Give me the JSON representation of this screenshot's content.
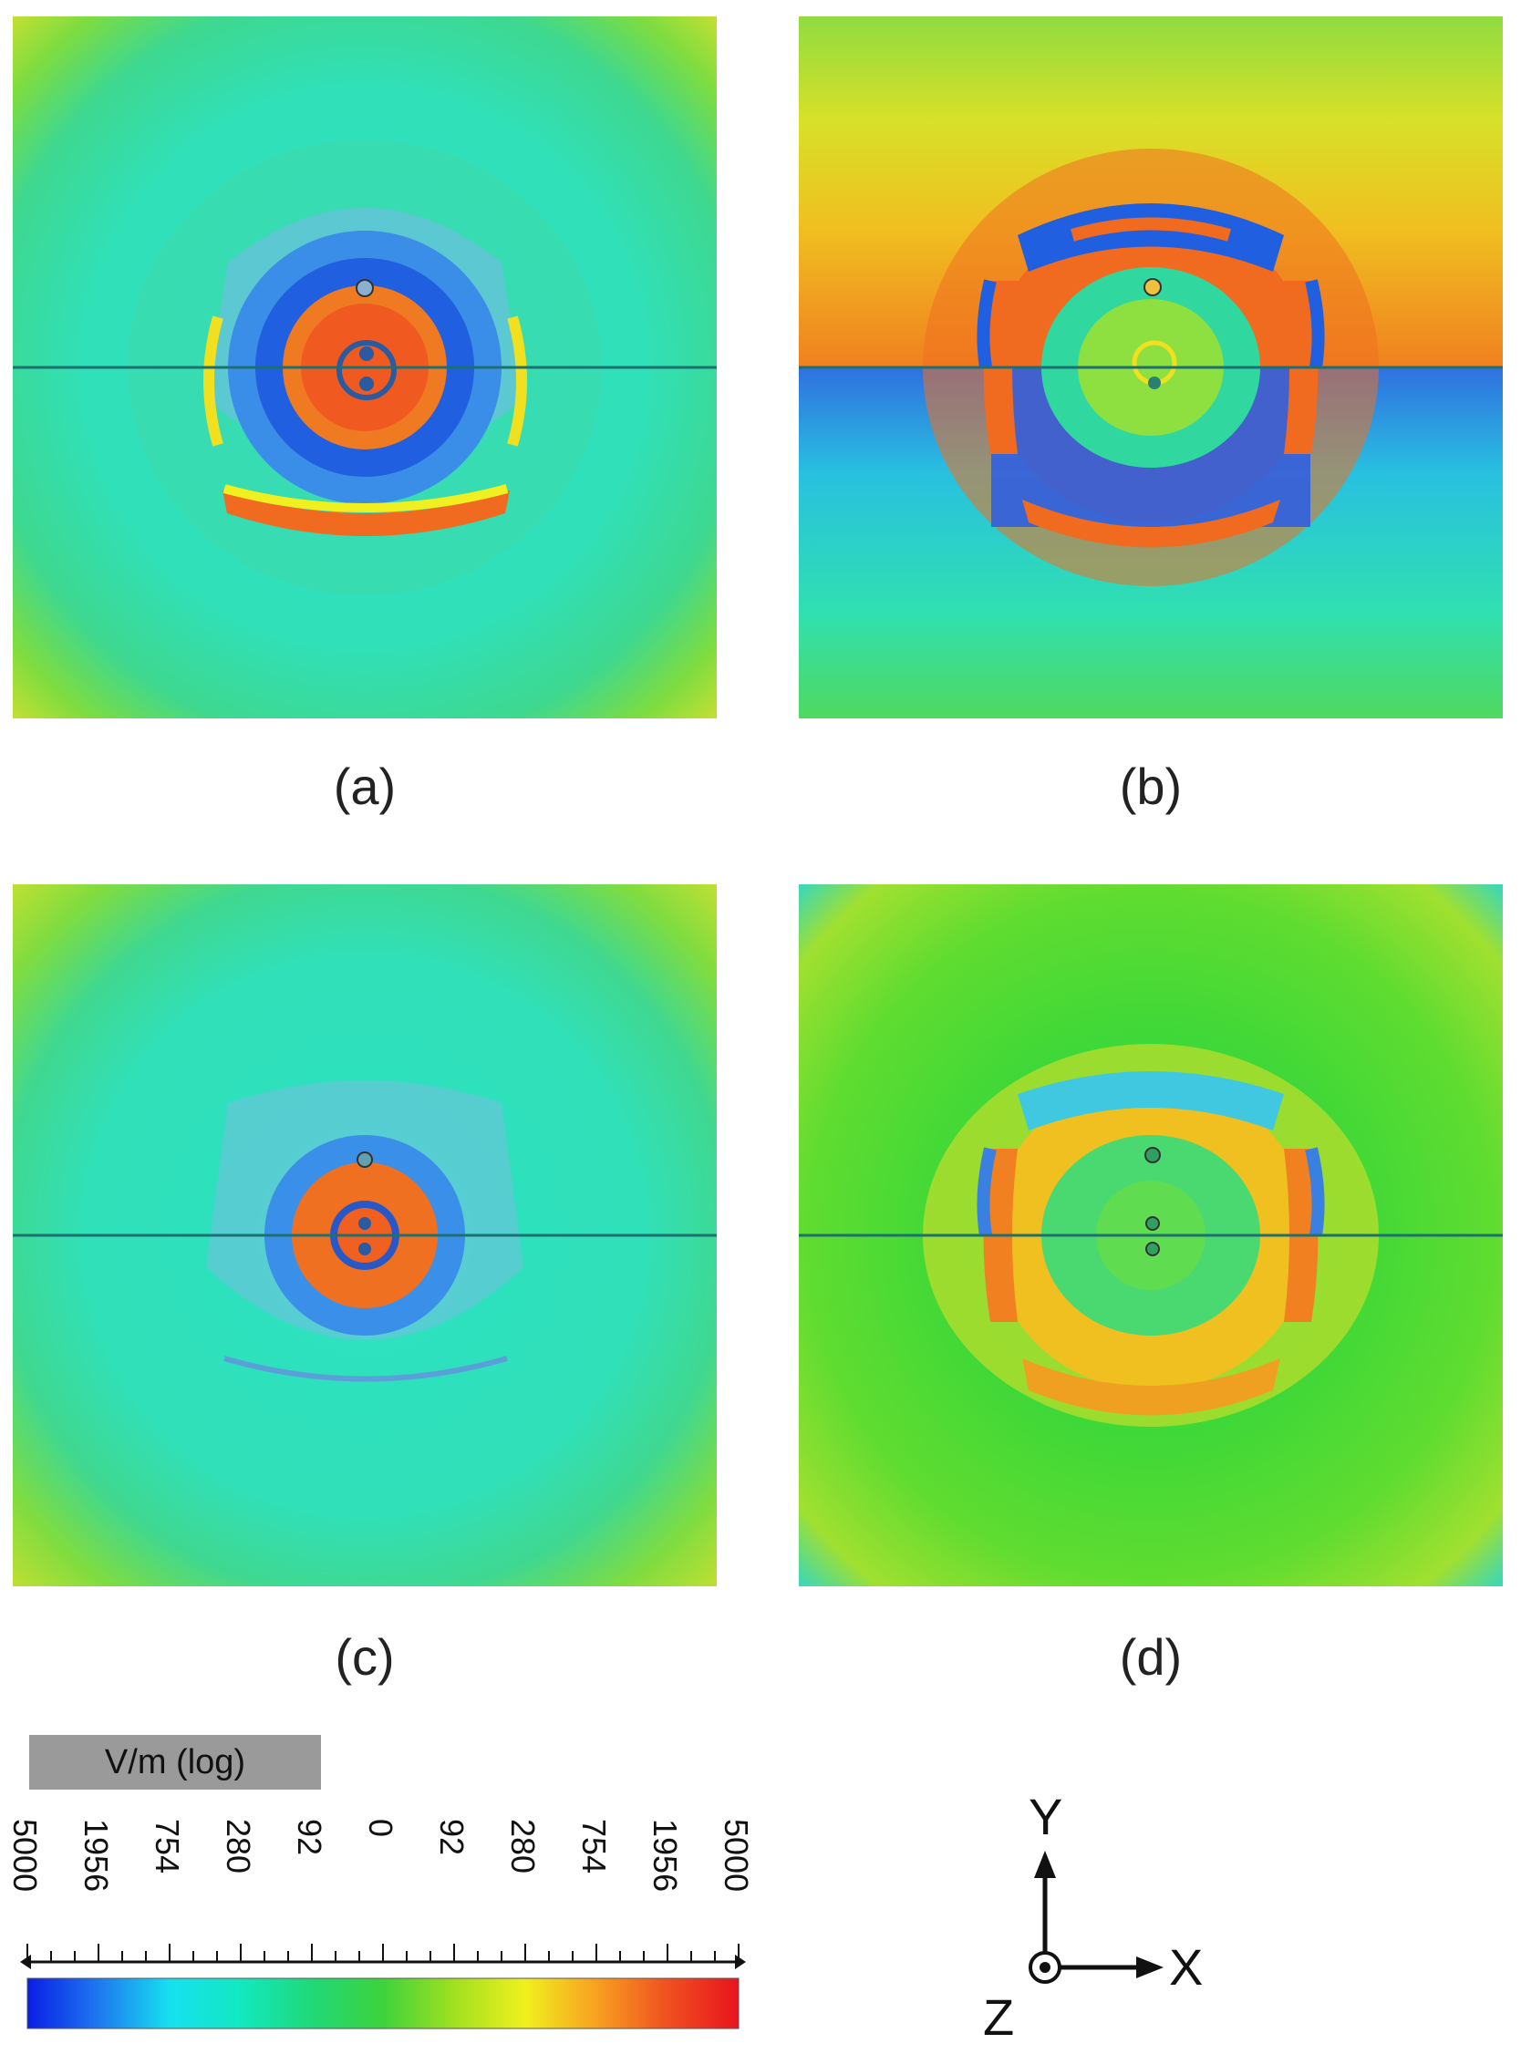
{
  "panels": [
    {
      "id": "a",
      "caption": "(a)"
    },
    {
      "id": "b",
      "caption": "(b)"
    },
    {
      "id": "c",
      "caption": "(c)"
    },
    {
      "id": "d",
      "caption": "(d)"
    }
  ],
  "colorbar": {
    "title": "V/m (log)",
    "tick_labels": [
      "5000",
      "1956",
      "754",
      "280",
      "92",
      "0",
      "92",
      "280",
      "754",
      "1956",
      "5000"
    ],
    "colors": [
      "#0a1ee6",
      "#1e78f0",
      "#16e0f0",
      "#12e8c0",
      "#20d878",
      "#3ed23c",
      "#a0e020",
      "#f0f01e",
      "#f8a020",
      "#f05020",
      "#e8141e"
    ]
  },
  "axes_indicator": {
    "x_label": "X",
    "y_label": "Y",
    "z_label": "Z"
  }
}
